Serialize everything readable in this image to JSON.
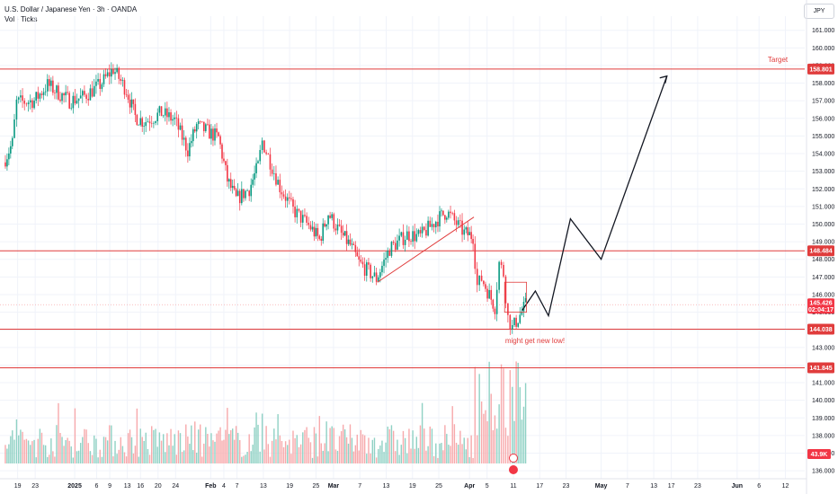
{
  "header": {
    "title": "U.S. Dollar / Japanese Yen · 3h · OANDA",
    "subtitle": "Vol · Ticks",
    "currency_button": "JPY"
  },
  "colors": {
    "up": "#089981",
    "down": "#f23645",
    "level_line": "#e03c3c",
    "drawing": "#131722",
    "volume_up": "#8fd1c4",
    "volume_down": "#f7a9ab"
  },
  "chart_data": {
    "type": "candlestick",
    "ylim": [
      135.6,
      161.8
    ],
    "y_ticks": [
      "161.000",
      "160.000",
      "159.000",
      "158.000",
      "157.000",
      "156.000",
      "155.000",
      "154.000",
      "153.000",
      "152.000",
      "151.000",
      "150.000",
      "149.000",
      "148.000",
      "147.000",
      "146.000",
      "145.000",
      "144.000",
      "143.000",
      "142.000",
      "141.000",
      "140.000",
      "139.000",
      "138.000",
      "137.000",
      "136.000"
    ],
    "x_ticks": [
      "19",
      "23",
      "2025",
      "6",
      "9",
      "13",
      "16",
      "20",
      "24",
      "Feb",
      "4",
      "7",
      "13",
      "19",
      "25",
      "Mar",
      "7",
      "13",
      "19",
      "25",
      "Apr",
      "5",
      "11",
      "17",
      "23",
      "May",
      "7",
      "13",
      "17",
      "23",
      "Jun",
      "6",
      "12"
    ],
    "price_path": [
      [
        "2024-12-16",
        153.5
      ],
      [
        "2024-12-18",
        154.6
      ],
      [
        "2024-12-19",
        156.9
      ],
      [
        "2024-12-23",
        157.0
      ],
      [
        "2024-12-26",
        157.9
      ],
      [
        "2024-12-31",
        157.0
      ],
      [
        "2025-01-03",
        157.2
      ],
      [
        "2025-01-07",
        157.9
      ],
      [
        "2025-01-10",
        158.8
      ],
      [
        "2025-01-13",
        157.6
      ],
      [
        "2025-01-15",
        156.1
      ],
      [
        "2025-01-17",
        155.8
      ],
      [
        "2025-01-21",
        156.3
      ],
      [
        "2025-01-24",
        155.9
      ],
      [
        "2025-01-27",
        154.2
      ],
      [
        "2025-01-29",
        155.6
      ],
      [
        "2025-02-03",
        154.9
      ],
      [
        "2025-02-05",
        152.5
      ],
      [
        "2025-02-07",
        151.4
      ],
      [
        "2025-02-10",
        152.0
      ],
      [
        "2025-02-12",
        153.3
      ],
      [
        "2025-02-13",
        154.7
      ],
      [
        "2025-02-17",
        152.1
      ],
      [
        "2025-02-20",
        150.8
      ],
      [
        "2025-02-24",
        149.8
      ],
      [
        "2025-02-26",
        149.1
      ],
      [
        "2025-02-28",
        150.6
      ],
      [
        "2025-03-03",
        149.4
      ],
      [
        "2025-03-05",
        148.8
      ],
      [
        "2025-03-07",
        147.8
      ],
      [
        "2025-03-11",
        146.9
      ],
      [
        "2025-03-14",
        148.6
      ],
      [
        "2025-03-18",
        149.4
      ],
      [
        "2025-03-21",
        149.3
      ],
      [
        "2025-03-25",
        150.3
      ],
      [
        "2025-03-27",
        150.7
      ],
      [
        "2025-03-31",
        149.5
      ],
      [
        "2025-04-02",
        149.3
      ],
      [
        "2025-04-03",
        146.5
      ],
      [
        "2025-04-04",
        146.9
      ],
      [
        "2025-04-07",
        145.3
      ],
      [
        "2025-04-08",
        147.8
      ],
      [
        "2025-04-09",
        147.2
      ],
      [
        "2025-04-10",
        144.7
      ],
      [
        "2025-04-11",
        144.1
      ],
      [
        "2025-04-14",
        145.4
      ]
    ],
    "volume_max": "43.9K",
    "levels": [
      {
        "price": 158.801,
        "label": "158.801"
      },
      {
        "price": 148.484,
        "label": "148.484"
      },
      {
        "price": 144.038,
        "label": "144.038"
      },
      {
        "price": 141.845,
        "label": "141.845"
      }
    ],
    "current_price": {
      "label": "145.426",
      "countdown": "02:04:17"
    },
    "projection": [
      [
        "2025-04-13",
        145.1
      ],
      [
        "2025-04-16",
        146.2
      ],
      [
        "2025-04-19",
        144.8
      ],
      [
        "2025-04-24",
        150.3
      ],
      [
        "2025-05-01",
        148.0
      ],
      [
        "2025-05-16",
        158.4
      ]
    ],
    "annotations": {
      "target": "Target",
      "new_low": "might get new low!"
    }
  }
}
